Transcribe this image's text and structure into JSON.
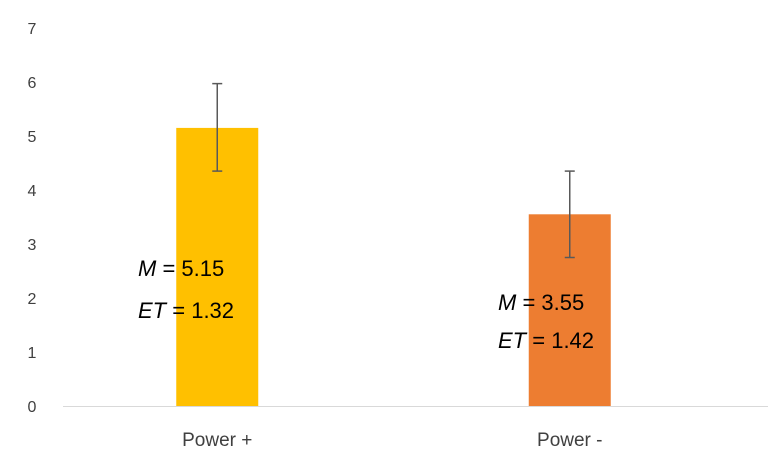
{
  "chart_data": {
    "type": "bar",
    "categories": [
      "Power +",
      "Power -"
    ],
    "values": [
      5.15,
      3.55
    ],
    "error_bars": [
      {
        "low": 4.35,
        "high": 5.97
      },
      {
        "low": 2.75,
        "high": 4.35
      }
    ],
    "ylim": [
      0,
      7
    ],
    "yticks": [
      "0",
      "1",
      "2",
      "3",
      "4",
      "5",
      "6",
      "7"
    ],
    "grid": false,
    "title": "",
    "xlabel": "",
    "ylabel": "",
    "colors": [
      "#FFC000",
      "#ED7D31"
    ],
    "annotations": [
      {
        "m_label": "M",
        "m_value": "= 5.15",
        "et_label": "ET",
        "et_value": "= 1.32"
      },
      {
        "m_label": "M",
        "m_value": "= 3.55",
        "et_label": "ET",
        "et_value": "= 1.42"
      }
    ]
  }
}
